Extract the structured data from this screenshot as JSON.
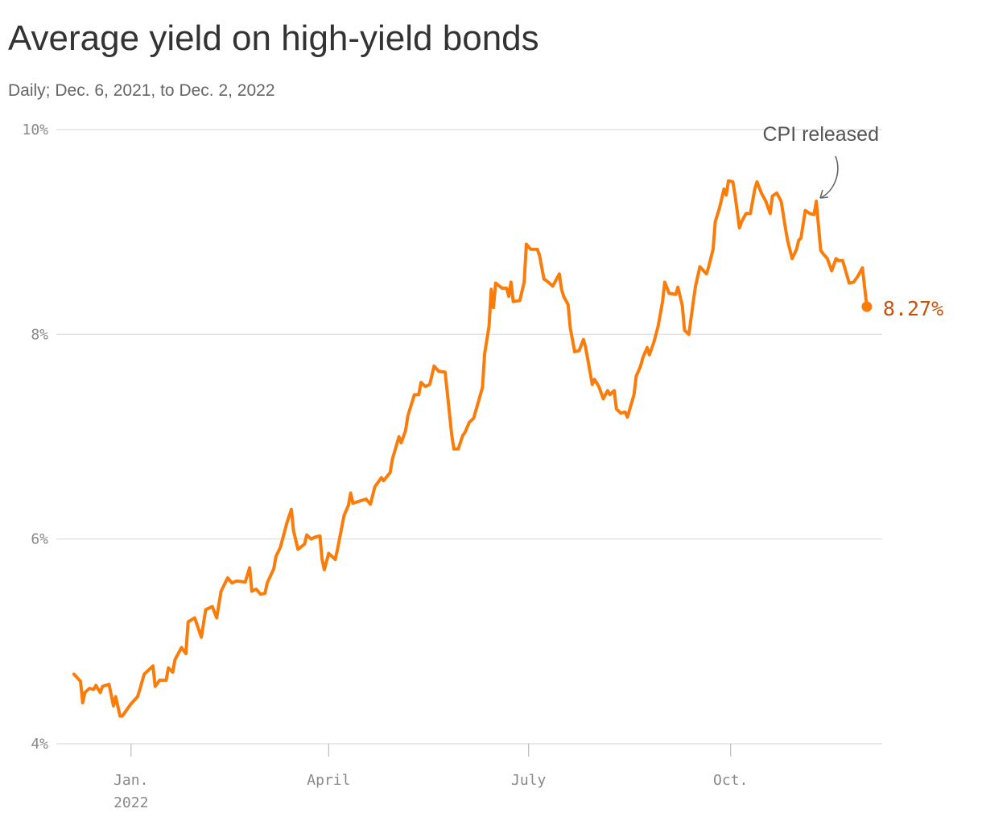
{
  "chart_data": {
    "type": "line",
    "title": "Average yield on high-yield bonds",
    "subtitle": "Daily; Dec. 6, 2021, to Dec. 2, 2022",
    "annotations": [
      {
        "text": "CPI released"
      }
    ],
    "x": [
      "2021-12-06",
      "2021-12-09",
      "2021-12-10",
      "2021-12-11",
      "2021-12-13",
      "2021-12-15",
      "2021-12-16",
      "2021-12-18",
      "2021-12-19",
      "2021-12-22",
      "2021-12-24",
      "2021-12-25",
      "2021-12-27",
      "2021-12-28",
      "2021-12-31",
      "2022-01-01",
      "2022-01-04",
      "2022-01-05",
      "2022-01-07",
      "2022-01-09",
      "2022-01-11",
      "2022-01-12",
      "2022-01-14",
      "2022-01-17",
      "2022-01-18",
      "2022-01-20",
      "2022-01-21",
      "2022-01-24",
      "2022-01-26",
      "2022-01-27",
      "2022-01-30",
      "2022-02-02",
      "2022-02-04",
      "2022-02-07",
      "2022-02-09",
      "2022-02-11",
      "2022-02-14",
      "2022-02-16",
      "2022-02-18",
      "2022-02-22",
      "2022-02-24",
      "2022-02-25",
      "2022-02-27",
      "2022-03-01",
      "2022-03-03",
      "2022-03-04",
      "2022-03-07",
      "2022-03-08",
      "2022-03-10",
      "2022-03-13",
      "2022-03-15",
      "2022-03-16",
      "2022-03-18",
      "2022-03-21",
      "2022-03-22",
      "2022-03-24",
      "2022-03-26",
      "2022-03-28",
      "2022-03-29",
      "2022-03-30",
      "2022-04-01",
      "2022-04-04",
      "2022-04-05",
      "2022-04-07",
      "2022-04-08",
      "2022-04-10",
      "2022-04-11",
      "2022-04-12",
      "2022-04-15",
      "2022-04-18",
      "2022-04-20",
      "2022-04-22",
      "2022-04-25",
      "2022-04-26",
      "2022-04-29",
      "2022-04-30",
      "2022-05-03",
      "2022-05-04",
      "2022-05-06",
      "2022-05-07",
      "2022-05-10",
      "2022-05-12",
      "2022-05-13",
      "2022-05-15",
      "2022-05-17",
      "2022-05-19",
      "2022-05-21",
      "2022-05-24",
      "2022-05-25",
      "2022-05-27",
      "2022-05-28",
      "2022-05-30",
      "2022-06-01",
      "2022-06-02",
      "2022-06-04",
      "2022-06-06",
      "2022-06-08",
      "2022-06-10",
      "2022-06-11",
      "2022-06-13",
      "2022-06-14",
      "2022-06-15",
      "2022-06-16",
      "2022-06-19",
      "2022-06-21",
      "2022-06-22",
      "2022-06-23",
      "2022-06-24",
      "2022-06-27",
      "2022-06-29",
      "2022-06-30",
      "2022-07-02",
      "2022-07-05",
      "2022-07-06",
      "2022-07-08",
      "2022-07-10",
      "2022-07-12",
      "2022-07-15",
      "2022-07-16",
      "2022-07-17",
      "2022-07-19",
      "2022-07-20",
      "2022-07-22",
      "2022-07-24",
      "2022-07-26",
      "2022-07-27",
      "2022-07-30",
      "2022-07-31",
      "2022-08-02",
      "2022-08-04",
      "2022-08-06",
      "2022-08-07",
      "2022-08-09",
      "2022-08-10",
      "2022-08-12",
      "2022-08-14",
      "2022-08-15",
      "2022-08-18",
      "2022-08-19",
      "2022-08-21",
      "2022-08-22",
      "2022-08-24",
      "2022-08-25",
      "2022-08-27",
      "2022-08-29",
      "2022-08-31",
      "2022-09-01",
      "2022-09-03",
      "2022-09-06",
      "2022-09-07",
      "2022-09-09",
      "2022-09-10",
      "2022-09-12",
      "2022-09-14",
      "2022-09-15",
      "2022-09-17",
      "2022-09-20",
      "2022-09-21",
      "2022-09-23",
      "2022-09-24",
      "2022-09-26",
      "2022-09-28",
      "2022-09-29",
      "2022-09-30",
      "2022-10-02",
      "2022-10-03",
      "2022-10-05",
      "2022-10-06",
      "2022-10-08",
      "2022-10-10",
      "2022-10-12",
      "2022-10-13",
      "2022-10-15",
      "2022-10-17",
      "2022-10-19",
      "2022-10-20",
      "2022-10-22",
      "2022-10-24",
      "2022-10-26",
      "2022-10-27",
      "2022-10-29",
      "2022-10-31",
      "2022-11-01",
      "2022-11-02",
      "2022-11-04",
      "2022-11-06",
      "2022-11-08",
      "2022-11-09",
      "2022-11-11",
      "2022-11-12",
      "2022-11-14",
      "2022-11-16",
      "2022-11-18",
      "2022-11-19",
      "2022-11-21",
      "2022-11-24",
      "2022-11-26",
      "2022-11-28",
      "2022-11-30",
      "2022-12-02"
    ],
    "series": [
      {
        "color": "#fa7d0c",
        "label_color": "#c9510a",
        "last_label": "8.27%",
        "values": [
          4.68,
          4.61,
          4.4,
          4.5,
          4.54,
          4.53,
          4.57,
          4.5,
          4.56,
          4.58,
          4.37,
          4.46,
          4.27,
          4.27,
          4.36,
          4.39,
          4.46,
          4.53,
          4.68,
          4.72,
          4.76,
          4.56,
          4.62,
          4.62,
          4.74,
          4.7,
          4.82,
          4.94,
          4.88,
          5.19,
          5.23,
          5.04,
          5.31,
          5.34,
          5.23,
          5.49,
          5.62,
          5.57,
          5.59,
          5.58,
          5.72,
          5.49,
          5.51,
          5.46,
          5.47,
          5.57,
          5.71,
          5.83,
          5.92,
          6.16,
          6.29,
          6.08,
          5.9,
          5.95,
          6.04,
          6.0,
          6.02,
          6.03,
          5.8,
          5.7,
          5.86,
          5.8,
          5.9,
          6.12,
          6.23,
          6.33,
          6.45,
          6.35,
          6.37,
          6.39,
          6.34,
          6.51,
          6.6,
          6.57,
          6.65,
          6.78,
          7.0,
          6.94,
          7.06,
          7.2,
          7.41,
          7.41,
          7.53,
          7.49,
          7.51,
          7.69,
          7.64,
          7.63,
          7.43,
          7.02,
          6.88,
          6.88,
          7.01,
          7.04,
          7.14,
          7.18,
          7.33,
          7.48,
          7.81,
          8.08,
          8.44,
          8.26,
          8.5,
          8.45,
          8.45,
          8.37,
          8.51,
          8.32,
          8.33,
          8.51,
          8.88,
          8.83,
          8.83,
          8.77,
          8.54,
          8.51,
          8.47,
          8.59,
          8.44,
          8.37,
          8.29,
          8.06,
          7.83,
          7.84,
          7.95,
          7.87,
          7.51,
          7.56,
          7.49,
          7.37,
          7.45,
          7.41,
          7.45,
          7.27,
          7.23,
          7.24,
          7.19,
          7.41,
          7.59,
          7.69,
          7.77,
          7.87,
          7.8,
          7.92,
          8.08,
          8.32,
          8.51,
          8.4,
          8.39,
          8.46,
          8.28,
          8.04,
          8.0,
          8.32,
          8.47,
          8.66,
          8.59,
          8.66,
          8.83,
          9.1,
          9.24,
          9.42,
          9.36,
          9.5,
          9.49,
          9.36,
          9.04,
          9.1,
          9.18,
          9.18,
          9.42,
          9.49,
          9.38,
          9.3,
          9.18,
          9.35,
          9.38,
          9.3,
          9.03,
          8.91,
          8.74,
          8.83,
          8.92,
          8.94,
          9.21,
          9.18,
          9.17,
          9.3,
          8.82,
          8.79,
          8.74,
          8.62,
          8.74,
          8.72,
          8.72,
          8.5,
          8.51,
          8.57,
          8.65,
          8.27
        ]
      }
    ],
    "xlim": [
      "2021-11-28",
      "2022-12-09"
    ],
    "xticks": [
      {
        "value": "2022-01-01",
        "label": "Jan.\n2022"
      },
      {
        "value": "2022-04-01",
        "label": "April"
      },
      {
        "value": "2022-07-01",
        "label": "July"
      },
      {
        "value": "2022-10-01",
        "label": "Oct."
      }
    ],
    "ylim": [
      4,
      10
    ],
    "yticks": [
      {
        "value": 4,
        "label": "4%"
      },
      {
        "value": 6,
        "label": "6%"
      },
      {
        "value": 8,
        "label": "8%"
      },
      {
        "value": 10,
        "label": "10%"
      }
    ],
    "grid": true
  }
}
